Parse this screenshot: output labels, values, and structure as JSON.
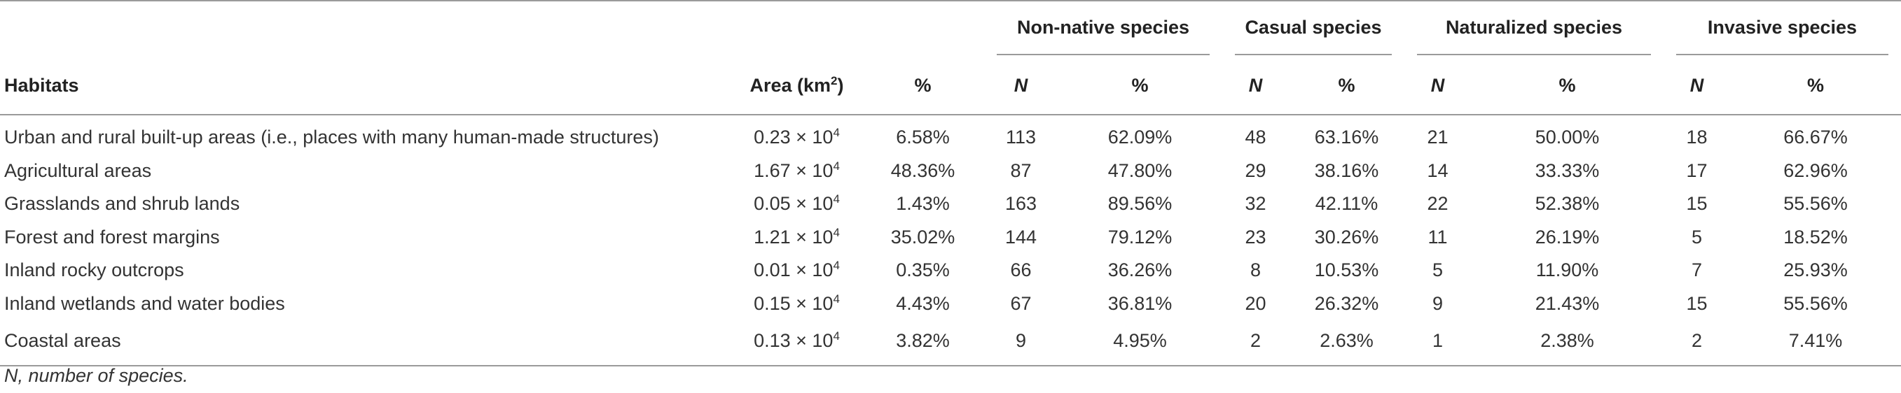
{
  "table": {
    "groups": {
      "non_native": "Non-native species",
      "casual": "Casual species",
      "naturalized": "Naturalized species",
      "invasive": "Invasive species"
    },
    "headers": {
      "habitats": "Habitats",
      "area": "Area (km",
      "area_sup": "2",
      "area_close": ")",
      "pct": "%",
      "n": "N",
      "p": "%"
    },
    "rows": [
      {
        "habitat": "Urban and rural built-up areas (i.e., places with many human-made structures)",
        "area": "0.23 × 10",
        "area_exp": "4",
        "pct": "6.58%",
        "nn_n": "113",
        "nn_p": "62.09%",
        "ca_n": "48",
        "ca_p": "63.16%",
        "na_n": "21",
        "na_p": "50.00%",
        "in_n": "18",
        "in_p": "66.67%"
      },
      {
        "habitat": "Agricultural areas",
        "area": "1.67 × 10",
        "area_exp": "4",
        "pct": "48.36%",
        "nn_n": "87",
        "nn_p": "47.80%",
        "ca_n": "29",
        "ca_p": "38.16%",
        "na_n": "14",
        "na_p": "33.33%",
        "in_n": "17",
        "in_p": "62.96%"
      },
      {
        "habitat": "Grasslands and shrub lands",
        "area": "0.05 × 10",
        "area_exp": "4",
        "pct": "1.43%",
        "nn_n": "163",
        "nn_p": "89.56%",
        "ca_n": "32",
        "ca_p": "42.11%",
        "na_n": "22",
        "na_p": "52.38%",
        "in_n": "15",
        "in_p": "55.56%"
      },
      {
        "habitat": "Forest and forest margins",
        "area": "1.21 × 10",
        "area_exp": "4",
        "pct": "35.02%",
        "nn_n": "144",
        "nn_p": "79.12%",
        "ca_n": "23",
        "ca_p": "30.26%",
        "na_n": "11",
        "na_p": "26.19%",
        "in_n": "5",
        "in_p": "18.52%"
      },
      {
        "habitat": "Inland rocky outcrops",
        "area": "0.01 × 10",
        "area_exp": "4",
        "pct": "0.35%",
        "nn_n": "66",
        "nn_p": "36.26%",
        "ca_n": "8",
        "ca_p": "10.53%",
        "na_n": "5",
        "na_p": "11.90%",
        "in_n": "7",
        "in_p": "25.93%"
      },
      {
        "habitat": "Inland wetlands and water bodies",
        "area": "0.15 × 10",
        "area_exp": "4",
        "pct": "4.43%",
        "nn_n": "67",
        "nn_p": "36.81%",
        "ca_n": "20",
        "ca_p": "26.32%",
        "na_n": "9",
        "na_p": "21.43%",
        "in_n": "15",
        "in_p": "55.56%"
      },
      {
        "habitat": "Coastal areas",
        "area": "0.13 × 10",
        "area_exp": "4",
        "pct": "3.82%",
        "nn_n": "9",
        "nn_p": "4.95%",
        "ca_n": "2",
        "ca_p": "2.63%",
        "na_n": "1",
        "na_p": "2.38%",
        "in_n": "2",
        "in_p": "7.41%"
      }
    ]
  },
  "footnote": "N, number of species."
}
